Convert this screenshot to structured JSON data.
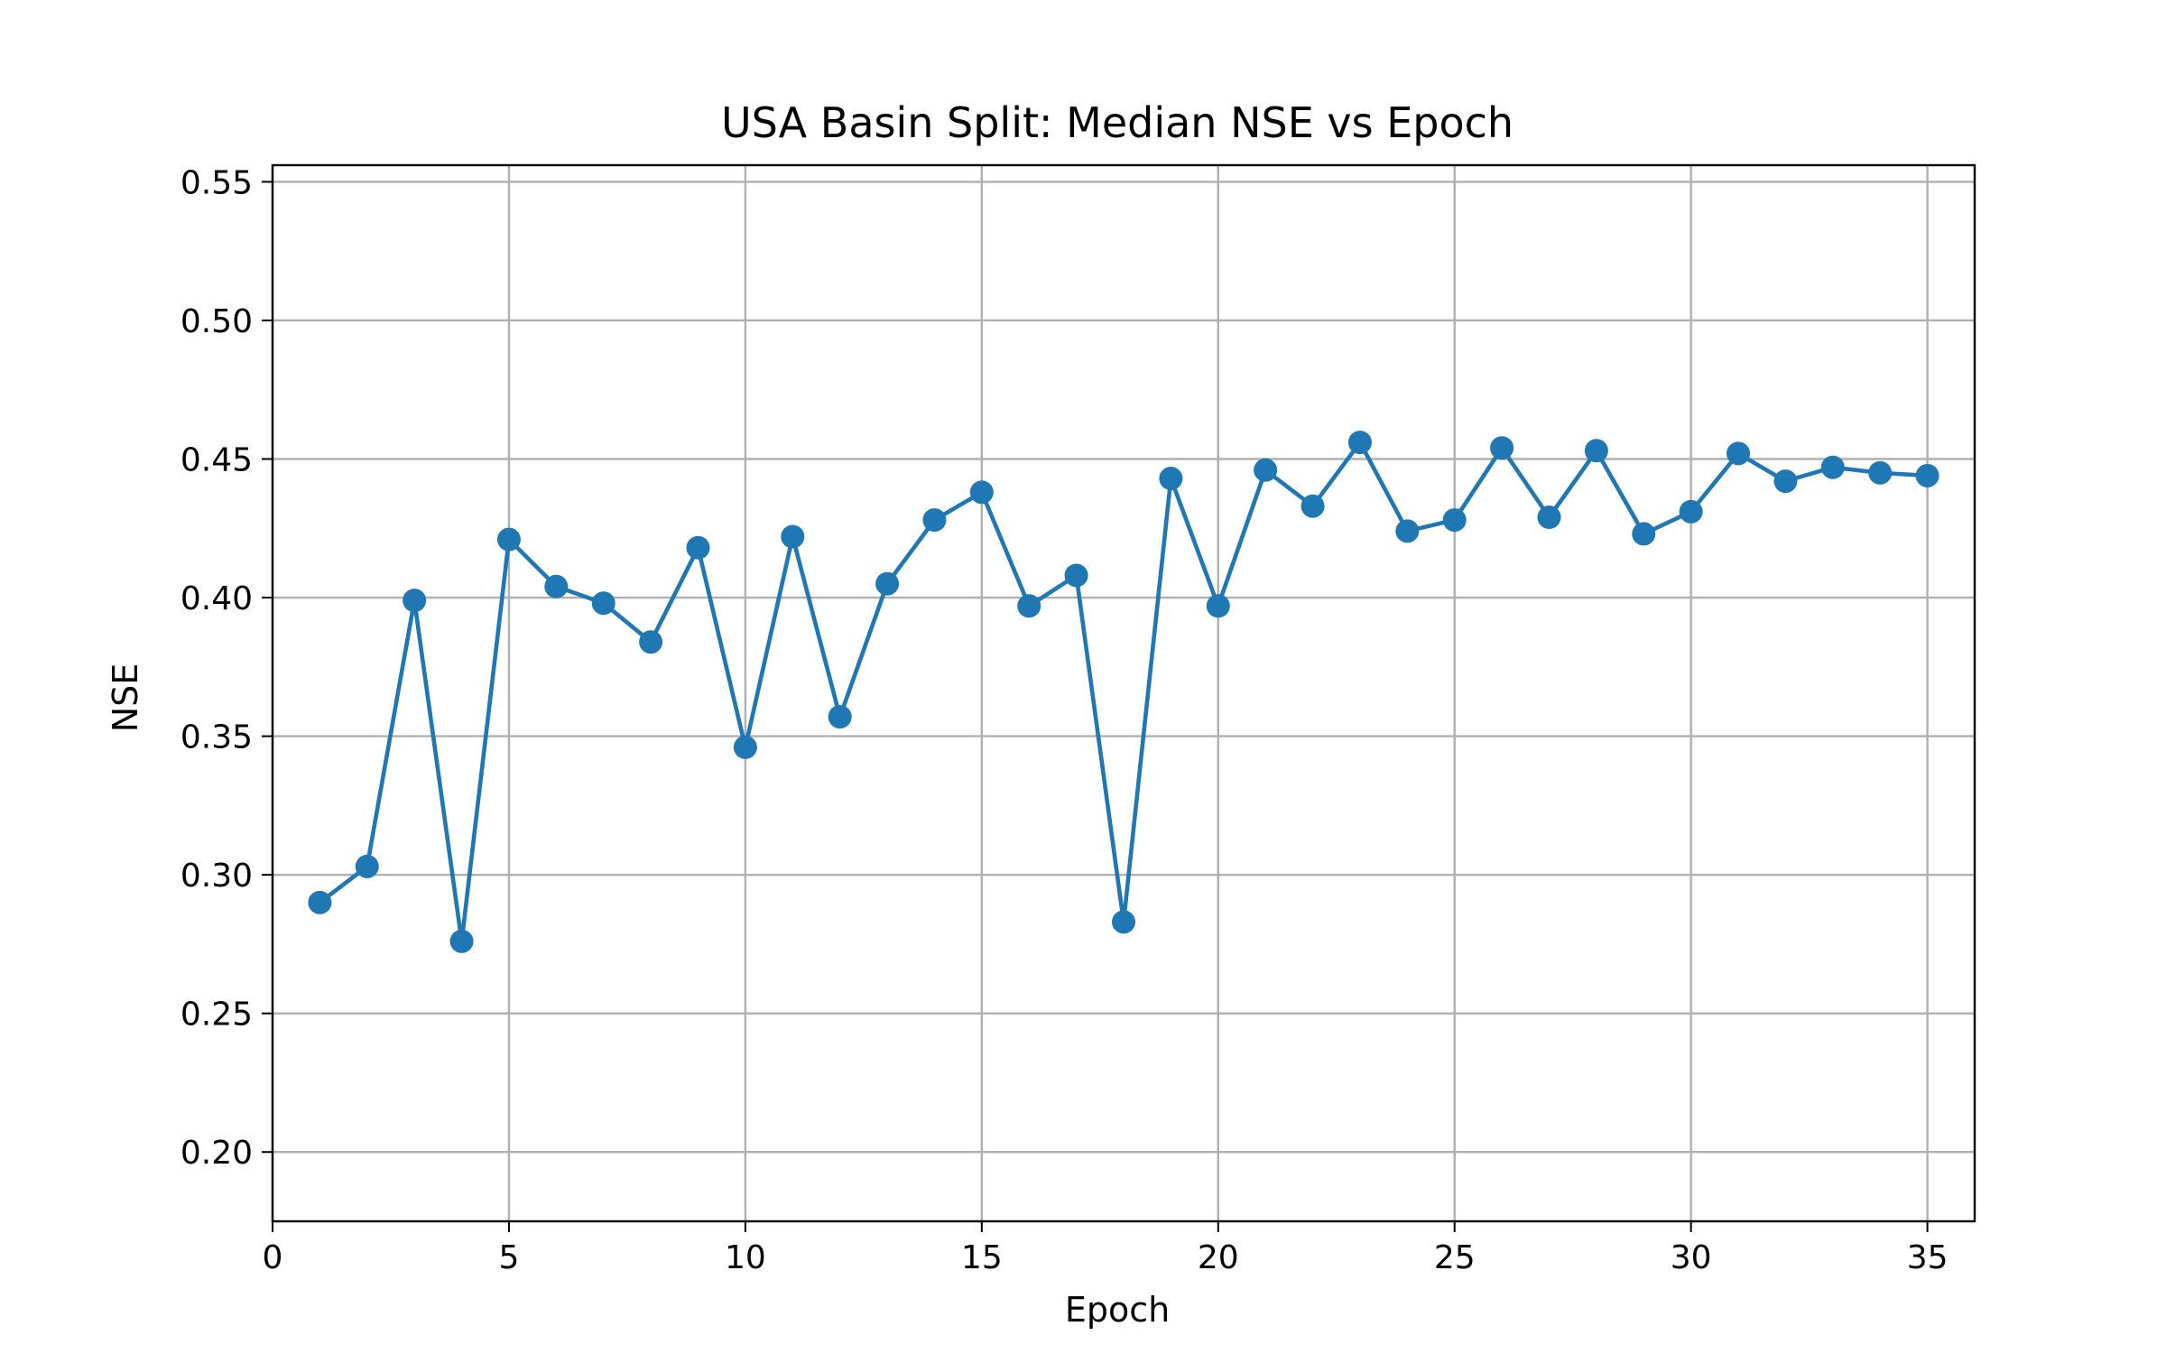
{
  "chart_data": {
    "type": "line",
    "title": "USA Basin Split: Median NSE vs Epoch",
    "xlabel": "Epoch",
    "ylabel": "NSE",
    "xlim": [
      0,
      36
    ],
    "ylim": [
      0.175,
      0.556
    ],
    "xticks": [
      0,
      5,
      10,
      15,
      20,
      25,
      30,
      35
    ],
    "yticks": [
      0.2,
      0.25,
      0.3,
      0.35,
      0.4,
      0.45,
      0.5,
      0.55
    ],
    "xtick_labels": [
      "0",
      "5",
      "10",
      "15",
      "20",
      "25",
      "30",
      "35"
    ],
    "ytick_labels": [
      "0.20",
      "0.25",
      "0.30",
      "0.35",
      "0.40",
      "0.45",
      "0.50",
      "0.55"
    ],
    "grid": true,
    "legend": "none",
    "series": [
      {
        "color": "#1f77b4",
        "marker": "circle",
        "x": [
          1,
          2,
          3,
          4,
          5,
          6,
          7,
          8,
          9,
          10,
          11,
          12,
          13,
          14,
          15,
          16,
          17,
          18,
          19,
          20,
          21,
          22,
          23,
          24,
          25,
          26,
          27,
          28,
          29,
          30,
          31,
          32,
          33,
          34,
          35
        ],
        "y": [
          0.29,
          0.303,
          0.399,
          0.276,
          0.421,
          0.404,
          0.398,
          0.384,
          0.418,
          0.346,
          0.422,
          0.357,
          0.405,
          0.428,
          0.438,
          0.397,
          0.408,
          0.283,
          0.443,
          0.397,
          0.446,
          0.433,
          0.456,
          0.424,
          0.428,
          0.454,
          0.429,
          0.453,
          0.423,
          0.431,
          0.452,
          0.442,
          0.447,
          0.445,
          0.444
        ]
      }
    ]
  }
}
